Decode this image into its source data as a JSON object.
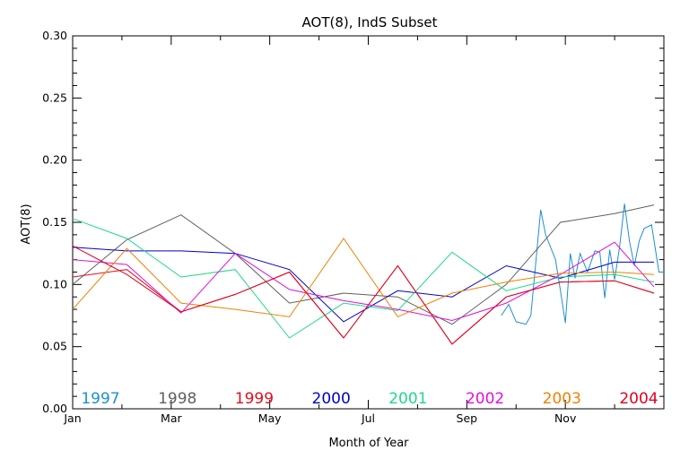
{
  "chart_data": {
    "type": "line",
    "title": "AOT(8), IndS Subset",
    "xlabel": "Month of Year",
    "ylabel": "AOT(8)",
    "xlim": [
      1,
      13
    ],
    "ylim": [
      0.0,
      0.3
    ],
    "x_tick_labels": [
      {
        "x": 1,
        "label": "Jan"
      },
      {
        "x": 3,
        "label": "Mar"
      },
      {
        "x": 5,
        "label": "May"
      },
      {
        "x": 7,
        "label": "Jul"
      },
      {
        "x": 9,
        "label": "Sep"
      },
      {
        "x": 11,
        "label": "Nov"
      }
    ],
    "y_tick_labels": [
      {
        "y": 0.0,
        "label": "0.00"
      },
      {
        "y": 0.05,
        "label": "0.05"
      },
      {
        "y": 0.1,
        "label": "0.10"
      },
      {
        "y": 0.15,
        "label": "0.15"
      },
      {
        "y": 0.2,
        "label": "0.20"
      },
      {
        "y": 0.25,
        "label": "0.25"
      },
      {
        "y": 0.3,
        "label": "0.30"
      }
    ],
    "legend_placement": "bottom",
    "grid": false,
    "series": [
      {
        "name": "1997",
        "color": "#1e8fd2",
        "x": [
          9.7,
          9.85,
          10.0,
          10.2,
          10.3,
          10.5,
          10.6,
          10.8,
          10.9,
          11.0,
          11.1,
          11.2,
          11.3,
          11.45,
          11.6,
          11.7,
          11.8,
          11.9,
          12.0,
          12.1,
          12.2,
          12.3,
          12.4,
          12.5,
          12.6,
          12.75,
          12.9,
          13.0
        ],
        "y": [
          0.075,
          0.084,
          0.07,
          0.068,
          0.075,
          0.16,
          0.14,
          0.12,
          0.095,
          0.069,
          0.125,
          0.105,
          0.125,
          0.11,
          0.127,
          0.126,
          0.089,
          0.128,
          0.104,
          0.13,
          0.165,
          0.135,
          0.115,
          0.135,
          0.145,
          0.148,
          0.11,
          0.11
        ]
      },
      {
        "name": "1998",
        "color": "#606060",
        "x": [
          1,
          2.1,
          3.2,
          4.3,
          5.4,
          6.5,
          7.6,
          8.7,
          9.8,
          10.9,
          12.0,
          12.8
        ],
        "y": [
          0.1,
          0.136,
          0.156,
          0.125,
          0.085,
          0.093,
          0.09,
          0.068,
          0.1,
          0.15,
          0.157,
          0.164
        ]
      },
      {
        "name": "1999",
        "color": "#e0101a",
        "x": [
          1,
          2.1,
          3.2,
          4.3,
          5.4,
          6.5,
          7.6,
          8.7,
          9.8,
          10.9,
          12.0,
          12.8
        ],
        "y": [
          0.106,
          0.112,
          0.078,
          0.092,
          0.11,
          0.057,
          0.115,
          0.052,
          0.09,
          0.102,
          0.103,
          0.093
        ]
      },
      {
        "name": "2000",
        "color": "#0000c8",
        "x": [
          1,
          2.1,
          3.2,
          4.3,
          5.4,
          6.5,
          7.6,
          8.7,
          9.8,
          10.9,
          12.0,
          12.8
        ],
        "y": [
          0.13,
          0.127,
          0.127,
          0.125,
          0.112,
          0.07,
          0.095,
          0.09,
          0.115,
          0.105,
          0.118,
          0.118
        ]
      },
      {
        "name": "2001",
        "color": "#20d888",
        "x": [
          1,
          2.1,
          3.2,
          4.3,
          5.4,
          6.5,
          7.6,
          8.7,
          9.8,
          10.9,
          12.0,
          12.8
        ],
        "y": [
          0.153,
          0.137,
          0.106,
          0.112,
          0.057,
          0.085,
          0.079,
          0.126,
          0.095,
          0.106,
          0.108,
          0.102
        ]
      },
      {
        "name": "2002",
        "color": "#e010e0",
        "x": [
          1,
          2.1,
          3.2,
          4.3,
          5.4,
          6.5,
          7.6,
          8.7,
          9.8,
          10.9,
          12.0,
          12.8
        ],
        "y": [
          0.12,
          0.116,
          0.077,
          0.125,
          0.096,
          0.087,
          0.08,
          0.071,
          0.085,
          0.108,
          0.134,
          0.098
        ]
      },
      {
        "name": "2003",
        "color": "#f08000",
        "x": [
          1,
          2.1,
          3.2,
          4.3,
          5.4,
          6.5,
          7.6,
          8.7,
          9.8,
          10.9,
          12.0,
          12.8
        ],
        "y": [
          0.08,
          0.129,
          0.085,
          0.08,
          0.074,
          0.137,
          0.074,
          0.093,
          0.102,
          0.109,
          0.11,
          0.108
        ]
      },
      {
        "name": "2004",
        "color": "#e00020",
        "x": [
          1,
          2.1,
          3.2,
          4.3,
          5.4,
          6.5,
          7.6,
          8.7,
          9.8,
          10.9,
          12.0,
          12.8
        ],
        "y": [
          0.131,
          0.108,
          0.078,
          0.092,
          0.11,
          0.057,
          0.115,
          0.052,
          0.09,
          0.102,
          0.103,
          0.093
        ]
      }
    ]
  }
}
